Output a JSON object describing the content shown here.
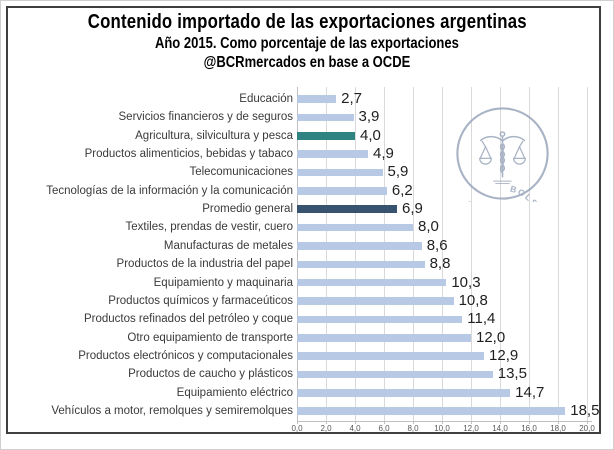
{
  "header": {
    "title": "Contenido importado de las exportaciones argentinas",
    "subtitle": "Año 2015. Como porcentaje de las exportaciones",
    "source": "@BCRmercados en base a OCDE"
  },
  "watermark": {
    "text": "BOLSA DE COMERCIO DE ROSARIO",
    "icon": "caduceus-with-scales-seal"
  },
  "colors": {
    "bar_default": "#B8C9E6",
    "bar_teal": "#2F8380",
    "bar_navy": "#38536F",
    "gridline": "#D9D9D9",
    "axis_line": "#BFBFBF",
    "tick_text": "#595959",
    "category_text": "#3A3A3A",
    "value_text": "#1F1F1F",
    "frame_border": "#3F3F3F",
    "watermark": "#9AA6BB",
    "title_text": "#000000"
  },
  "chart_data": {
    "type": "bar",
    "orientation": "horizontal",
    "title": "Contenido importado de las exportaciones argentinas",
    "subtitle": "Año 2015. Como porcentaje de las exportaciones",
    "annotation": "@BCRmercados en base a OCDE",
    "xlabel": "",
    "ylabel": "",
    "xlim": [
      0,
      20
    ],
    "grid": true,
    "legend": false,
    "categories": [
      "Educación",
      "Servicios financieros y de seguros",
      "Agricultura, silvicultura y pesca",
      "Productos alimenticios, bebidas y tabaco",
      "Telecomunicaciones",
      "Tecnologías de la información y la comunicación",
      "Promedio general",
      "Textiles, prendas de vestir, cuero",
      "Manufacturas de metales",
      "Productos de la industria del papel",
      "Equipamiento y maquinaria",
      "Productos químicos y farmaceúticos",
      "Productos refinados del petróleo y coque",
      "Otro equipamiento de transporte",
      "Productos electrónicos y computacionales",
      "Productos de caucho y plásticos",
      "Equipamiento eléctrico",
      "Vehículos a motor, remolques y semiremolques"
    ],
    "values": [
      2.7,
      3.9,
      4.0,
      4.9,
      5.9,
      6.2,
      6.9,
      8.0,
      8.6,
      8.8,
      10.3,
      10.8,
      11.4,
      12.0,
      12.9,
      13.5,
      14.7,
      18.5
    ],
    "value_labels": [
      "2,7",
      "3,9",
      "4,0",
      "4,9",
      "5,9",
      "6,2",
      "6,9",
      "8,0",
      "8,6",
      "8,8",
      "10,3",
      "10,8",
      "11,4",
      "12,0",
      "12,9",
      "13,5",
      "14,7",
      "18,5"
    ],
    "bar_color_keys": [
      "default",
      "default",
      "teal",
      "default",
      "default",
      "default",
      "navy",
      "default",
      "default",
      "default",
      "default",
      "default",
      "default",
      "default",
      "default",
      "default",
      "default",
      "default"
    ],
    "x_ticks": [
      0,
      2,
      4,
      6,
      8,
      10,
      12,
      14,
      16,
      18,
      20
    ],
    "x_tick_labels": [
      "0,0",
      "2,0",
      "4,0",
      "6,0",
      "8,0",
      "10,0",
      "12,0",
      "14,0",
      "16,0",
      "18,0",
      "20,0"
    ]
  }
}
